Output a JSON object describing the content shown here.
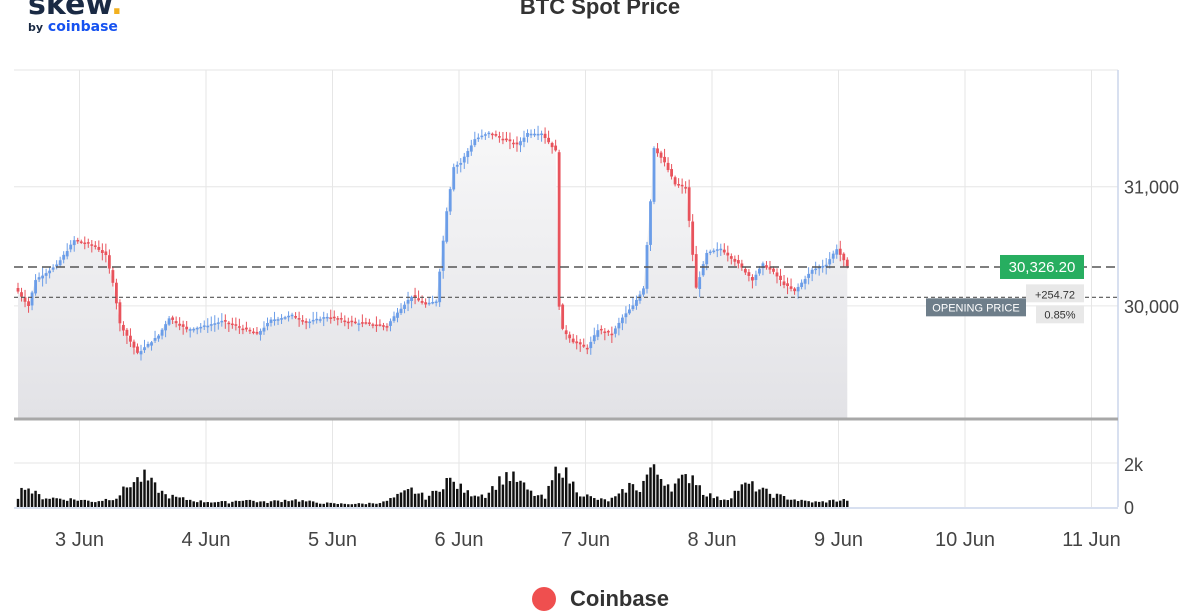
{
  "logo": {
    "word": "skew",
    "dot": ".",
    "by": "by",
    "brand": "coinbase"
  },
  "chart_data": {
    "type": "candlestick",
    "title": "BTC Spot Price",
    "xlabel": "",
    "ylabel": "",
    "x_ticks": [
      "3 Jun",
      "4 Jun",
      "5 Jun",
      "6 Jun",
      "7 Jun",
      "8 Jun",
      "9 Jun",
      "10 Jun",
      "11 Jun"
    ],
    "price_axis": {
      "ticks": [
        31000,
        30000
      ],
      "tick_labels": [
        "31,000",
        "30,000"
      ],
      "ylim": [
        29050,
        31980
      ]
    },
    "volume_axis": {
      "ticks": [
        2000,
        0
      ],
      "tick_labels": [
        "2k",
        "0"
      ],
      "ylim": [
        0,
        2050
      ]
    },
    "current_price": {
      "value": 30326.2,
      "label": "30,326.20",
      "color": "#27ae60"
    },
    "opening_price": {
      "value": 30071.48,
      "label": "OPENING PRICE",
      "change": "+254.72",
      "change_pct": "0.85%"
    },
    "legend": [
      {
        "name": "Coinbase",
        "color": "#ef4f4f"
      }
    ],
    "colors": {
      "up": "#6b9de8",
      "down": "#e8535c",
      "area": "#e2e2e6",
      "bottom_line": "#a8a8a8"
    },
    "grid": true,
    "candles_per_day": 36,
    "candle_start_day": 2.5,
    "price_path": [
      [
        0,
        30120
      ],
      [
        3,
        30000
      ],
      [
        5,
        30220
      ],
      [
        9,
        30300
      ],
      [
        11,
        30340
      ],
      [
        16,
        30550
      ],
      [
        22,
        30500
      ],
      [
        25,
        30420
      ],
      [
        27,
        30200
      ],
      [
        29,
        29850
      ],
      [
        34,
        29600
      ],
      [
        40,
        29750
      ],
      [
        43,
        29900
      ],
      [
        48,
        29800
      ],
      [
        53,
        29830
      ],
      [
        58,
        29870
      ],
      [
        62,
        29830
      ],
      [
        68,
        29760
      ],
      [
        72,
        29880
      ],
      [
        78,
        29920
      ],
      [
        82,
        29860
      ],
      [
        88,
        29910
      ],
      [
        92,
        29880
      ],
      [
        96,
        29860
      ],
      [
        100,
        29850
      ],
      [
        105,
        29830
      ],
      [
        108,
        29950
      ],
      [
        112,
        30080
      ],
      [
        116,
        30010
      ],
      [
        119,
        30040
      ],
      [
        122,
        30800
      ],
      [
        124,
        31170
      ],
      [
        126,
        31200
      ],
      [
        130,
        31400
      ],
      [
        134,
        31450
      ],
      [
        138,
        31400
      ],
      [
        142,
        31350
      ],
      [
        145,
        31450
      ],
      [
        149,
        31450
      ],
      [
        153,
        31300
      ],
      [
        154,
        30000
      ],
      [
        155,
        29800
      ],
      [
        158,
        29700
      ],
      [
        162,
        29640
      ],
      [
        165,
        29800
      ],
      [
        169,
        29760
      ],
      [
        172,
        29900
      ],
      [
        175,
        30000
      ],
      [
        178,
        30150
      ],
      [
        180,
        30880
      ],
      [
        181,
        31330
      ],
      [
        184,
        31200
      ],
      [
        187,
        31020
      ],
      [
        190,
        30990
      ],
      [
        193,
        30150
      ],
      [
        196,
        30440
      ],
      [
        200,
        30480
      ],
      [
        205,
        30350
      ],
      [
        209,
        30220
      ],
      [
        212,
        30350
      ],
      [
        215,
        30280
      ],
      [
        218,
        30180
      ],
      [
        221,
        30120
      ],
      [
        224,
        30230
      ],
      [
        226,
        30300
      ],
      [
        230,
        30350
      ],
      [
        233,
        30480
      ],
      [
        236,
        30326
      ]
    ],
    "volume_path": [
      [
        0,
        500
      ],
      [
        2,
        1050
      ],
      [
        4,
        700
      ],
      [
        7,
        450
      ],
      [
        11,
        400
      ],
      [
        16,
        350
      ],
      [
        22,
        260
      ],
      [
        28,
        450
      ],
      [
        32,
        1100
      ],
      [
        36,
        1400
      ],
      [
        39,
        950
      ],
      [
        42,
        550
      ],
      [
        46,
        400
      ],
      [
        52,
        260
      ],
      [
        60,
        220
      ],
      [
        64,
        350
      ],
      [
        70,
        220
      ],
      [
        78,
        350
      ],
      [
        84,
        220
      ],
      [
        90,
        150
      ],
      [
        98,
        150
      ],
      [
        104,
        220
      ],
      [
        108,
        500
      ],
      [
        112,
        800
      ],
      [
        116,
        450
      ],
      [
        119,
        700
      ],
      [
        122,
        1300
      ],
      [
        125,
        1000
      ],
      [
        128,
        650
      ],
      [
        133,
        560
      ],
      [
        136,
        1050
      ],
      [
        139,
        1500
      ],
      [
        142,
        1250
      ],
      [
        146,
        650
      ],
      [
        150,
        400
      ],
      [
        153,
        1600
      ],
      [
        154,
        2050
      ],
      [
        157,
        1250
      ],
      [
        160,
        650
      ],
      [
        164,
        380
      ],
      [
        168,
        300
      ],
      [
        171,
        520
      ],
      [
        174,
        1000
      ],
      [
        177,
        850
      ],
      [
        180,
        1800
      ],
      [
        183,
        1400
      ],
      [
        186,
        950
      ],
      [
        189,
        1250
      ],
      [
        192,
        1500
      ],
      [
        195,
        700
      ],
      [
        199,
        400
      ],
      [
        202,
        380
      ],
      [
        205,
        850
      ],
      [
        208,
        1050
      ],
      [
        212,
        750
      ],
      [
        215,
        560
      ],
      [
        219,
        420
      ],
      [
        223,
        280
      ],
      [
        228,
        220
      ],
      [
        232,
        300
      ],
      [
        236,
        330
      ]
    ],
    "x_range_days": [
      2.5,
      11.2
    ]
  }
}
